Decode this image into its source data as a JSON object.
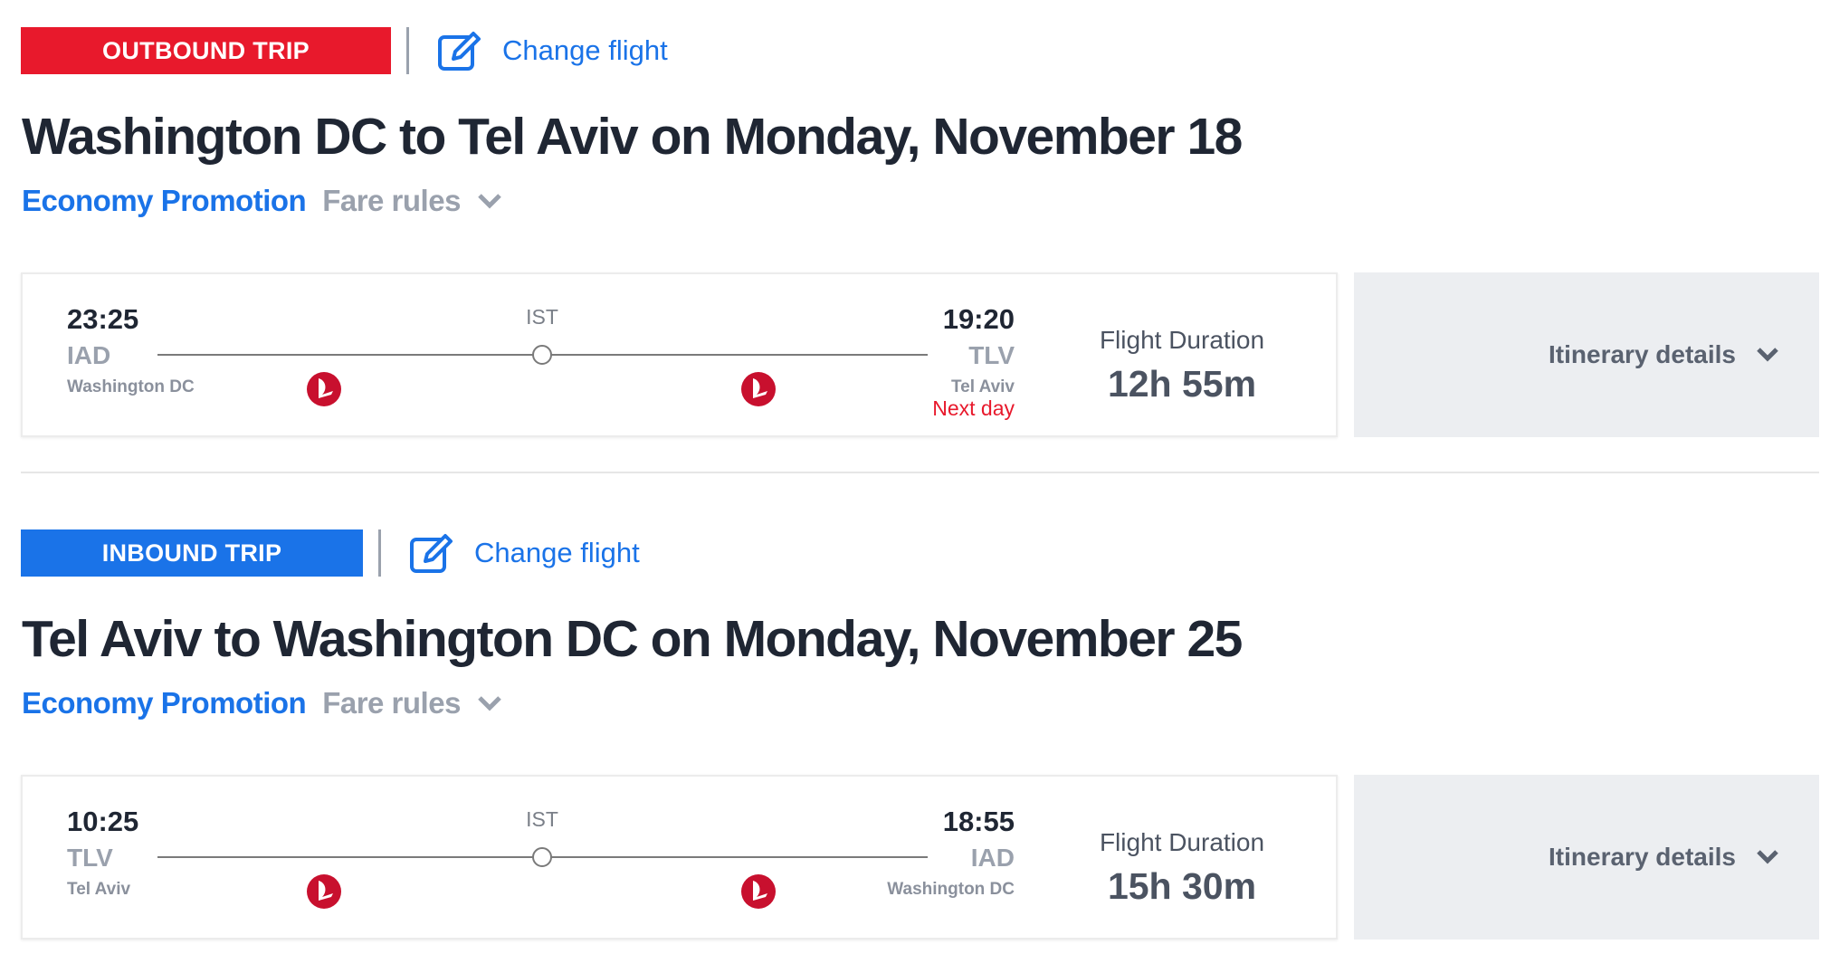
{
  "trips": [
    {
      "badge": "OUTBOUND TRIP",
      "badge_color": "#e8192c",
      "change_label": "Change flight",
      "title": "Washington DC to Tel Aviv on Monday, November 18",
      "fare_class": "Economy Promotion",
      "fare_rules": "Fare rules",
      "dep_time": "23:25",
      "dep_code": "IAD",
      "dep_city": "Washington DC",
      "stop": "IST",
      "arr_time": "19:20",
      "arr_code": "TLV",
      "arr_city": "Tel Aviv",
      "arr_note": "Next day",
      "duration_label": "Flight Duration",
      "duration": "12h 55m",
      "itinerary_label": "Itinerary details"
    },
    {
      "badge": "INBOUND TRIP",
      "badge_color": "#1a73e8",
      "change_label": "Change flight",
      "title": "Tel Aviv to Washington DC on Monday, November 25",
      "fare_class": "Economy Promotion",
      "fare_rules": "Fare rules",
      "dep_time": "10:25",
      "dep_code": "TLV",
      "dep_city": "Tel Aviv",
      "stop": "IST",
      "arr_time": "18:55",
      "arr_code": "IAD",
      "arr_city": "Washington DC",
      "duration_label": "Flight Duration",
      "duration": "15h 30m",
      "itinerary_label": "Itinerary details"
    }
  ],
  "icons": {
    "edit": "edit-pencil-icon",
    "chevron": "chevron-down-icon",
    "airline": "turkish-airlines-logo"
  }
}
